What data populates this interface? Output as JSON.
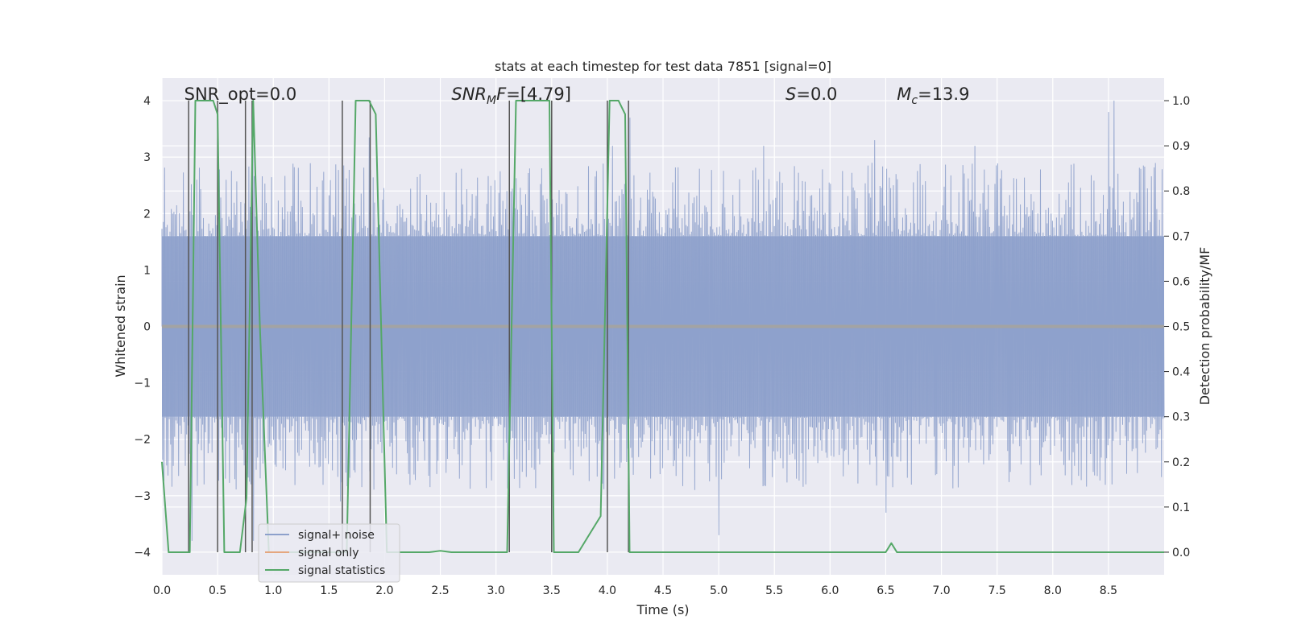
{
  "chart_data": {
    "type": "line",
    "title": "stats at each timestep for test data 7851 [signal=0]",
    "xlabel": "Time (s)",
    "ylabel_left": "Whitened strain",
    "ylabel_right": "Detection probability/MF",
    "xlim": [
      0.0,
      9.0
    ],
    "ylim_left": [
      -4.4,
      4.4
    ],
    "ylim_right": [
      -0.05,
      1.05
    ],
    "x_ticks": [
      0.0,
      0.5,
      1.0,
      1.5,
      2.0,
      2.5,
      3.0,
      3.5,
      4.0,
      4.5,
      5.0,
      5.5,
      6.0,
      6.5,
      7.0,
      7.5,
      8.0,
      8.5
    ],
    "x_tick_labels": [
      "0.0",
      "0.5",
      "1.0",
      "1.5",
      "2.0",
      "2.5",
      "3.0",
      "3.5",
      "4.0",
      "4.5",
      "5.0",
      "5.5",
      "6.0",
      "6.5",
      "7.0",
      "7.5",
      "8.0",
      "8.5"
    ],
    "y_left_ticks": [
      4,
      3,
      2,
      1,
      0,
      -1,
      -2,
      -3,
      -4
    ],
    "y_left_tick_labels": [
      "4",
      "3",
      "2",
      "1",
      "0",
      "−1",
      "−2",
      "−3",
      "−4"
    ],
    "y_right_ticks": [
      1.0,
      0.9,
      0.8,
      0.7,
      0.6,
      0.5,
      0.4,
      0.3,
      0.2,
      0.1,
      0.0
    ],
    "y_right_tick_labels": [
      "1.0",
      "0.9",
      "0.8",
      "0.7",
      "0.6",
      "0.5",
      "0.4",
      "0.3",
      "0.2",
      "0.1",
      "0.0"
    ],
    "annotations": [
      {
        "id": "snr-opt",
        "x": 0.2,
        "text": "SNR_opt=0.0"
      },
      {
        "id": "snr-mf",
        "x": 2.6,
        "text": "SNR_MF=[4.79]"
      },
      {
        "id": "s-value",
        "x": 5.6,
        "text": "S=0.0"
      },
      {
        "id": "mc-value",
        "x": 6.6,
        "text": "M_c=13.9"
      }
    ],
    "legend": {
      "placement": "lower-left",
      "entries": [
        {
          "label": "signal+ noise",
          "color": "#8da0cb"
        },
        {
          "label": "signal only",
          "color": "#e5a77f"
        },
        {
          "label": "signal statistics",
          "color": "#55a868"
        }
      ]
    },
    "series": [
      {
        "name": "signal+ noise",
        "axis": "left",
        "color": "#8da0cb",
        "style": "noise-band",
        "core_amplitude": 1.6,
        "peaks": [
          [
            0.27,
            4.0
          ],
          [
            0.82,
            3.4
          ],
          [
            1.86,
            3.35
          ],
          [
            3.1,
            2.4
          ],
          [
            3.3,
            2.8
          ],
          [
            4.05,
            3.2
          ],
          [
            4.2,
            3.7
          ],
          [
            5.4,
            3.2
          ],
          [
            6.4,
            3.3
          ],
          [
            7.3,
            3.2
          ],
          [
            8.5,
            3.8
          ],
          [
            8.55,
            4.0
          ]
        ],
        "troughs": [
          [
            0.27,
            -3.8
          ],
          [
            0.82,
            -3.8
          ],
          [
            1.6,
            -3.1
          ],
          [
            3.1,
            -3.3
          ],
          [
            4.0,
            -3.5
          ],
          [
            5.0,
            -3.7
          ],
          [
            6.5,
            -3.3
          ],
          [
            8.5,
            -3.4
          ]
        ]
      },
      {
        "name": "signal only",
        "axis": "left",
        "color": "#e5a77f",
        "x": [
          0.0,
          9.0
        ],
        "values": [
          0.0,
          0.0
        ]
      },
      {
        "name": "signal statistics",
        "axis": "right",
        "color": "#55a868",
        "x": [
          0.0,
          0.06,
          0.12,
          0.2,
          0.25,
          0.3,
          0.4,
          0.46,
          0.5,
          0.56,
          0.62,
          0.7,
          0.76,
          0.82,
          0.88,
          0.96,
          1.06,
          1.2,
          1.4,
          1.6,
          1.66,
          1.74,
          1.86,
          1.92,
          2.02,
          2.2,
          2.4,
          2.5,
          2.6,
          3.0,
          3.1,
          3.18,
          3.22,
          3.3,
          3.4,
          3.48,
          3.52,
          3.58,
          3.66,
          3.74,
          3.84,
          3.94,
          4.02,
          4.06,
          4.1,
          4.16,
          4.2,
          4.26,
          4.34,
          4.5,
          6.5,
          6.55,
          6.6,
          6.7,
          7.0,
          9.0
        ],
        "values": [
          0.2,
          0.0,
          0.0,
          0.0,
          0.0,
          1.0,
          1.0,
          1.0,
          0.97,
          0.0,
          0.0,
          0.0,
          0.12,
          1.0,
          0.5,
          0.0,
          0.0,
          0.0,
          0.0,
          0.0,
          0.0,
          1.0,
          1.0,
          0.97,
          0.0,
          0.0,
          0.0,
          0.003,
          0.0,
          0.0,
          0.0,
          1.0,
          1.0,
          1.0,
          1.0,
          1.0,
          0.0,
          0.0,
          0.0,
          0.0,
          0.04,
          0.08,
          1.0,
          1.0,
          1.0,
          0.97,
          0.0,
          0.0,
          0.0,
          0.0,
          0.0,
          0.02,
          0.0,
          0.0,
          0.0,
          0.0
        ]
      }
    ],
    "vertical_lines": [
      0.24,
      0.5,
      0.75,
      0.81,
      1.62,
      1.87,
      3.12,
      3.5,
      4.0,
      4.19
    ]
  }
}
